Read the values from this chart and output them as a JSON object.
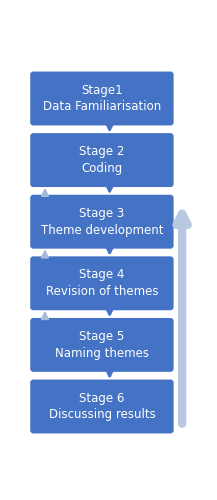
{
  "stages": [
    {
      "title": "Stage  1",
      "subtitle": "Data Familiarisation"
    },
    {
      "title": "Stage 2",
      "subtitle": "Coding"
    },
    {
      "title": "Stage 3",
      "subtitle": "Theme development"
    },
    {
      "title": "Stage 4",
      "subtitle": "Revision of themes"
    },
    {
      "title": "Stage 5",
      "subtitle": "Naming themes"
    },
    {
      "title": "Stage 6",
      "subtitle": "Discussing results"
    }
  ],
  "stage_titles": [
    "Stage1",
    "Stage 2",
    "Stage 3",
    "Stage 4",
    "Stage 5",
    "Stage 6"
  ],
  "stage_subs": [
    "Data Familiarisation",
    "Coding",
    "Theme development",
    "Revision of themes",
    "Naming themes",
    "Discussing results"
  ],
  "box_color": "#4472c4",
  "arrow_down_color": "#4472c4",
  "arrow_up_left_color": "#a8bcd8",
  "arrow_right_color": "#b8c8e0",
  "bg_color": "#ffffff",
  "text_color": "#ffffff",
  "title_fontsize": 8.5,
  "subtitle_fontsize": 8.5,
  "fig_width": 2.17,
  "fig_height": 5.0
}
